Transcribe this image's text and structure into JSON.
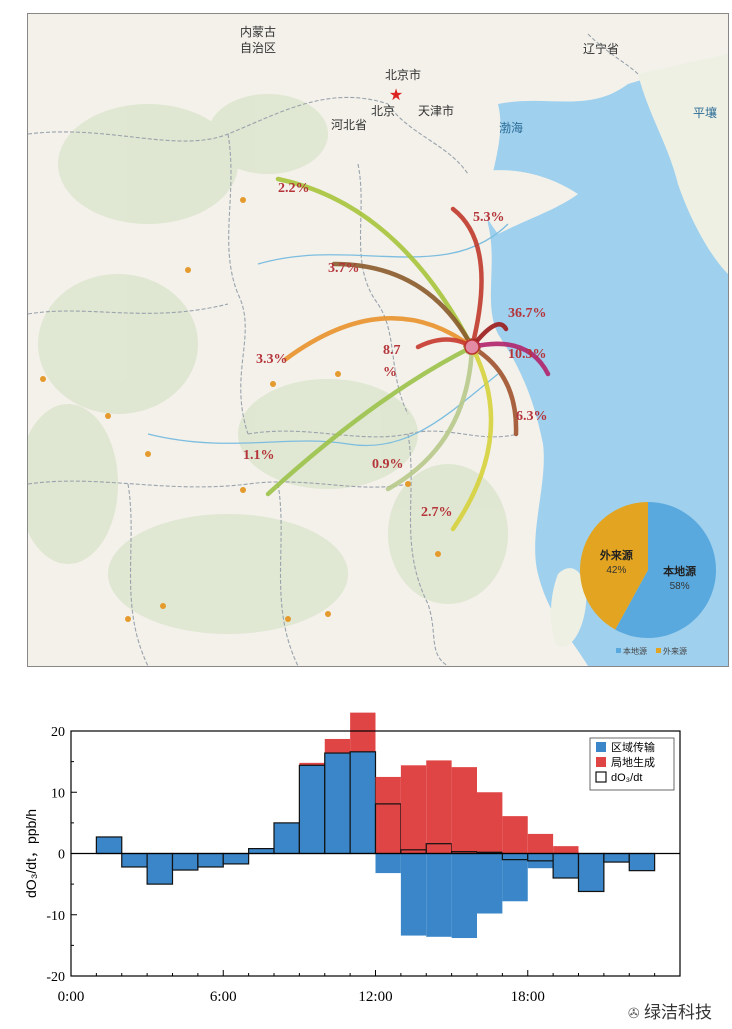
{
  "map": {
    "place_labels": [
      {
        "text": "内蒙古",
        "id": "inner-mongolia-1"
      },
      {
        "text": "自治区",
        "id": "inner-mongolia-2"
      },
      {
        "text": "北京市",
        "id": "beijing-city"
      },
      {
        "text": "北京",
        "id": "beijing"
      },
      {
        "text": "天津市",
        "id": "tianjin"
      },
      {
        "text": "河北省",
        "id": "hebei"
      },
      {
        "text": "辽宁省",
        "id": "liaoning"
      },
      {
        "text": "渤海",
        "id": "bohai"
      },
      {
        "text": "平壤",
        "id": "pyongyang"
      }
    ],
    "flows": [
      {
        "label": "2.2%",
        "color": "#a6c43a"
      },
      {
        "label": "5.3%",
        "color": "#c0392b"
      },
      {
        "label": "3.7%",
        "color": "#8a5a2b"
      },
      {
        "label": "36.7%",
        "color": "#9b1c1c"
      },
      {
        "label": "3.3%",
        "color": "#e8912b"
      },
      {
        "label": "8.7",
        "color": "#c7392e"
      },
      {
        "label": "%",
        "color": "#c7392e"
      },
      {
        "label": "10.3%",
        "color": "#b0226a"
      },
      {
        "label": "6.3%",
        "color": "#a0522d"
      },
      {
        "label": "1.1%",
        "color": "#9cc24a"
      },
      {
        "label": "0.9%",
        "color": "#b7c98b"
      },
      {
        "label": "2.7%",
        "color": "#d6d23c"
      }
    ],
    "flow_label_color": "#b5343a",
    "pie": {
      "slices": [
        {
          "name": "本地源",
          "value": 58,
          "label": "58%",
          "color": "#5aa9de"
        },
        {
          "name": "外来源",
          "value": 42,
          "label": "42%",
          "color": "#e3a521"
        }
      ],
      "legend": [
        "本地源",
        "外来源"
      ]
    }
  },
  "chart_data": {
    "type": "bar",
    "ylabel": "dO₃/dt，ppb/h",
    "ylim": [
      -20,
      20
    ],
    "yticks": [
      "20",
      "10",
      "0",
      "-10",
      "-20"
    ],
    "xlim": [
      0,
      24
    ],
    "xticks": [
      "0:00",
      "6:00",
      "12:00",
      "18:00"
    ],
    "bin_hours": [
      1,
      2,
      3,
      4,
      5,
      6,
      7,
      8,
      9,
      10,
      11,
      12,
      13,
      14,
      15,
      16,
      17,
      18,
      19,
      20,
      21,
      22,
      23
    ],
    "series": [
      {
        "name": "区域传输",
        "color": "#3a86c8",
        "values": [
          2.7,
          -2.2,
          -5.0,
          -2.7,
          -2.2,
          -1.7,
          0.8,
          5.0,
          14.4,
          16.4,
          16.6,
          -3.2,
          -13.4,
          -13.6,
          -13.8,
          -9.8,
          -7.8,
          -2.4,
          -4.0,
          -6.2,
          -1.4,
          -2.8,
          0
        ]
      },
      {
        "name": "局地生成",
        "color": "#e04545",
        "values": [
          0,
          0,
          0,
          0,
          0,
          0,
          0,
          0,
          0.4,
          2.3,
          6.4,
          12.5,
          14.4,
          15.2,
          14.1,
          10.0,
          6.1,
          3.2,
          1.2,
          0,
          0,
          0,
          0
        ]
      },
      {
        "name": "dO₃/dt",
        "color": "#111111",
        "values": [
          2.7,
          -2.2,
          -5.0,
          -2.7,
          -2.2,
          -1.7,
          0.8,
          5.0,
          14.4,
          16.4,
          16.6,
          8.1,
          0.6,
          1.6,
          0.3,
          0.2,
          -1.0,
          -1.2,
          -4.0,
          -6.2,
          -1.4,
          -2.8,
          0
        ]
      }
    ]
  },
  "watermark": "绿洁科技"
}
